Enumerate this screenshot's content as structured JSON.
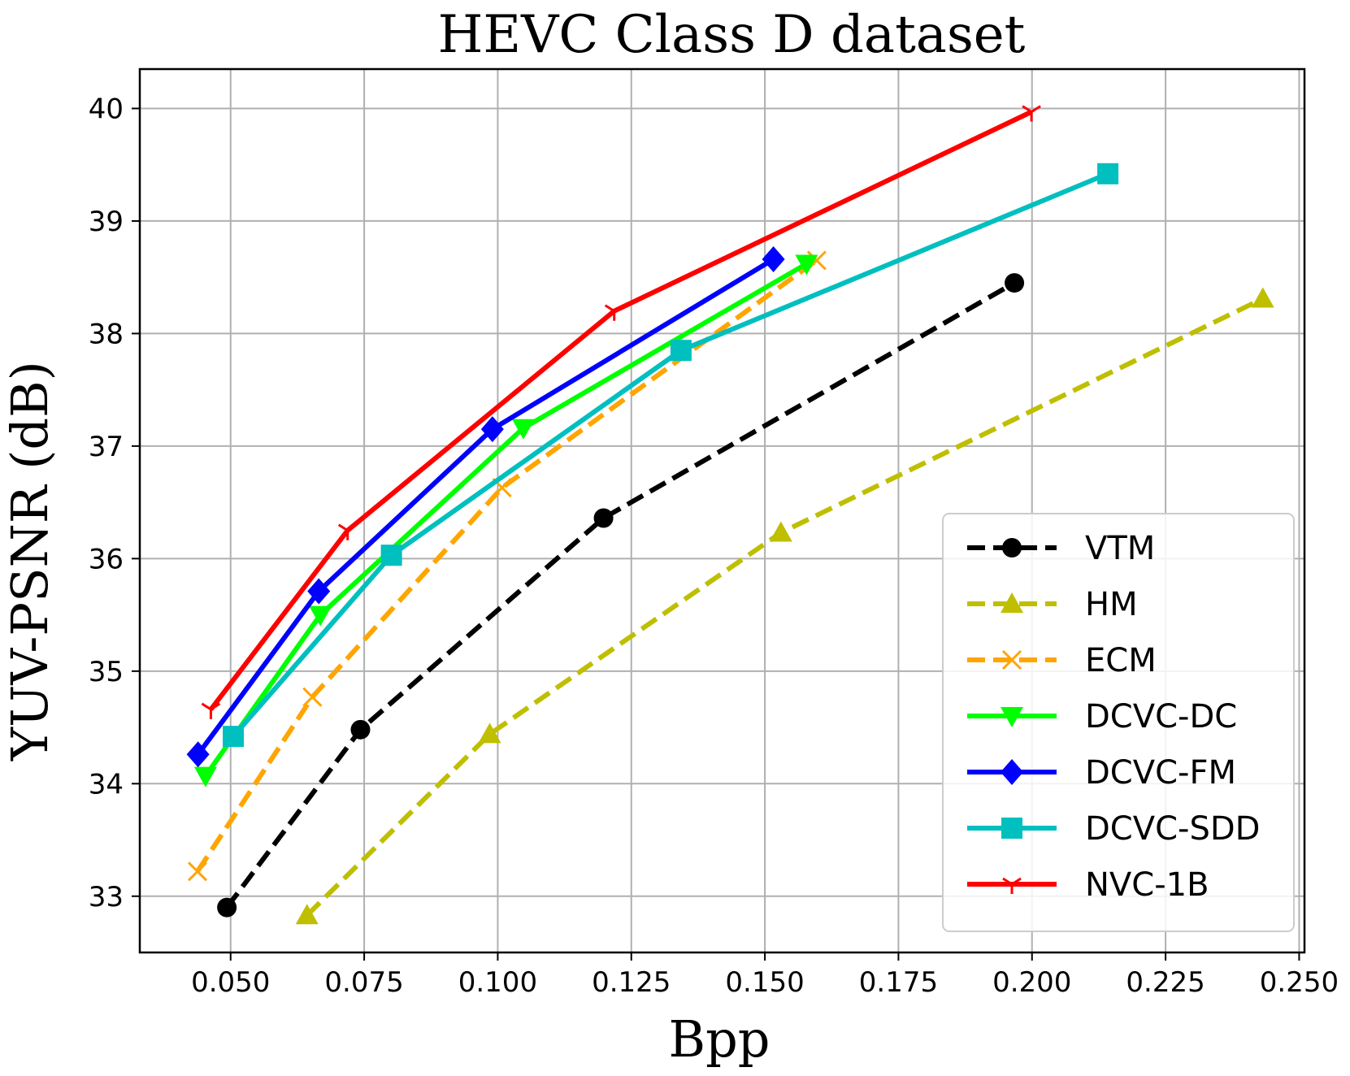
{
  "chart_data": {
    "type": "line",
    "title": "HEVC Class D dataset",
    "xlabel": "Bpp",
    "ylabel": "YUV-PSNR (dB)",
    "xlim": [
      0.033,
      0.251
    ],
    "ylim": [
      32.5,
      40.35
    ],
    "xticks": [
      0.05,
      0.075,
      0.1,
      0.125,
      0.15,
      0.175,
      0.2,
      0.225,
      0.25
    ],
    "xtick_labels": [
      "0.050",
      "0.075",
      "0.100",
      "0.125",
      "0.150",
      "0.175",
      "0.200",
      "0.225",
      "0.250"
    ],
    "yticks": [
      33,
      34,
      35,
      36,
      37,
      38,
      39,
      40
    ],
    "ytick_labels": [
      "33",
      "34",
      "35",
      "36",
      "37",
      "38",
      "39",
      "40"
    ],
    "grid": true,
    "legend_position": "lower-right",
    "series": [
      {
        "name": "VTM",
        "color": "#000000",
        "dash": "dashed",
        "marker": "circle",
        "x": [
          0.0493,
          0.0743,
          0.1198,
          0.1967
        ],
        "y": [
          32.9,
          34.48,
          36.36,
          38.45
        ]
      },
      {
        "name": "HM",
        "color": "#bfbf00",
        "dash": "dashed",
        "marker": "triangle-up",
        "x": [
          0.0643,
          0.0985,
          0.153,
          0.2432
        ],
        "y": [
          32.83,
          34.44,
          36.23,
          38.31
        ]
      },
      {
        "name": "ECM",
        "color": "#ffa500",
        "dash": "dashed",
        "marker": "x",
        "x": [
          0.0438,
          0.0653,
          0.1008,
          0.1597
        ],
        "y": [
          33.22,
          34.77,
          36.63,
          38.65
        ]
      },
      {
        "name": "DCVC-DC",
        "color": "#00ff00",
        "dash": "solid",
        "marker": "triangle-down",
        "x": [
          0.0453,
          0.0668,
          0.1048,
          0.1578
        ],
        "y": [
          34.07,
          35.5,
          37.16,
          38.62
        ]
      },
      {
        "name": "DCVC-FM",
        "color": "#0000ff",
        "dash": "solid",
        "marker": "diamond",
        "x": [
          0.0439,
          0.0665,
          0.099,
          0.1516
        ],
        "y": [
          34.26,
          35.71,
          37.15,
          38.66
        ]
      },
      {
        "name": "DCVC-SDD",
        "color": "#00bfbf",
        "dash": "solid",
        "marker": "square",
        "x": [
          0.0505,
          0.0801,
          0.1343,
          0.2142
        ],
        "y": [
          34.42,
          36.03,
          37.85,
          39.42
        ]
      },
      {
        "name": "NVC-1B",
        "color": "#ff0000",
        "dash": "solid",
        "marker": "tri-down",
        "x": [
          0.0463,
          0.0719,
          0.1218,
          0.1999
        ],
        "y": [
          34.66,
          36.25,
          38.2,
          39.97
        ]
      }
    ]
  }
}
